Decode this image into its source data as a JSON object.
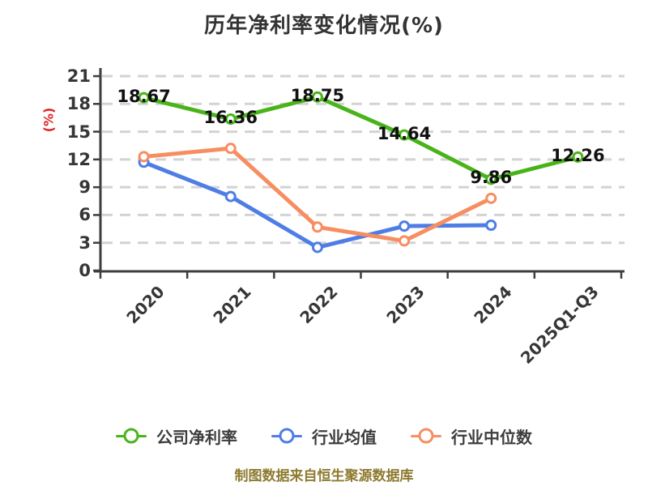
{
  "title": "历年净利率变化情况(%)",
  "footer_note": "制图数据来自恒生聚源数据库",
  "chart_data": {
    "type": "line",
    "title": "历年净利率变化情况(%)",
    "categories": [
      "2020",
      "2021",
      "2022",
      "2023",
      "2024",
      "2025Q1-Q3"
    ],
    "series": [
      {
        "key": "company-net-margin",
        "name": "公司净利率",
        "color": "#49b41a",
        "values": [
          18.67,
          16.36,
          18.75,
          14.64,
          9.86,
          12.26
        ],
        "point_labels": true
      },
      {
        "key": "industry-mean",
        "name": "行业均值",
        "color": "#4e7de5",
        "values": [
          11.7,
          8.0,
          2.5,
          4.8,
          4.9,
          null
        ],
        "point_labels": false
      },
      {
        "key": "industry-median",
        "name": "行业中位数",
        "color": "#f78e61",
        "values": [
          12.3,
          13.2,
          4.7,
          3.2,
          7.8,
          null
        ],
        "point_labels": false
      }
    ],
    "xlabel": "",
    "ylabel": "(%)",
    "yticks": [
      0,
      3,
      6,
      9,
      12,
      15,
      18,
      21
    ],
    "ylim": [
      0,
      21
    ],
    "grid": "dashed-horizontal",
    "legend_position": "bottom",
    "colors": {
      "axis": "#3d3d3d",
      "grid": "#d3d3d3",
      "tick_label": "#363636",
      "value_label": "#111111",
      "ylabel": "#e02222",
      "title": "#333333",
      "footer": "#8e7a30",
      "marker_fill": "#ffffff"
    }
  }
}
